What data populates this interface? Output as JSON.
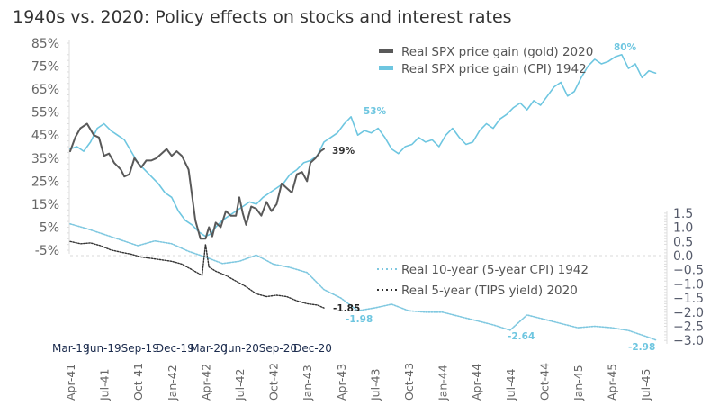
{
  "title": "1940s vs. 2020: Policy effects on stocks and interest rates",
  "colors": {
    "gold_2020": "#595959",
    "cpi_1942": "#6ec6e0",
    "tips_2020": "#333333",
    "real10_1942": "#7fc8e0",
    "axis_text": "#666666",
    "secondary_x_text": "#1b2b4d"
  },
  "chart_data": {
    "type": "line",
    "title": "1940s vs. 2020: Policy effects on stocks and interest rates",
    "x_primary_labels": [
      "Apr-41",
      "Jul-41",
      "Oct-41",
      "Jan-42",
      "Apr-42",
      "Jul-42",
      "Oct-42",
      "Jan-43",
      "Apr-43",
      "Jul-43",
      "Oct-43",
      "Jan-44",
      "Apr-44",
      "Jul-44",
      "Oct-44",
      "Jan-45",
      "Apr-45",
      "Jul-45"
    ],
    "x_secondary_labels": [
      "Mar-19",
      "Jun-19",
      "Sep-19",
      "Dec-19",
      "Mar-20",
      "Jun-20",
      "Sep-20",
      "Dec-20"
    ],
    "y_left": {
      "label": "",
      "ticks": [
        "85%",
        "75%",
        "65%",
        "55%",
        "45%",
        "35%",
        "25%",
        "15%",
        "5%",
        "-5%"
      ],
      "range": [
        -5,
        85
      ]
    },
    "y_right": {
      "label": "",
      "ticks": [
        "1.5",
        "1.0",
        "0.5",
        "0.0",
        "-0.5",
        "-1.0",
        "-1.5",
        "-2.0",
        "-2.5",
        "-3.0"
      ],
      "range": [
        -3.0,
        1.5
      ]
    },
    "legend": [
      {
        "name": "Real SPX price gain (gold) 2020",
        "style": "solid",
        "color": "#595959",
        "placement": "top-right"
      },
      {
        "name": "Real SPX price gain (CPI) 1942",
        "style": "solid",
        "color": "#6ec6e0",
        "placement": "top-right"
      },
      {
        "name": "Real 10-year (5-year CPI) 1942",
        "style": "dotted",
        "color": "#7fc8e0",
        "placement": "middle-right"
      },
      {
        "name": "Real 5-year (TIPS yield) 2020",
        "style": "dotted",
        "color": "#333333",
        "placement": "middle-right"
      }
    ],
    "series": [
      {
        "name": "Real SPX price gain (gold) 2020",
        "axis": "left",
        "x_quarters": [
          0,
          0.15,
          0.3,
          0.5,
          0.7,
          0.85,
          1.0,
          1.15,
          1.3,
          1.5,
          1.6,
          1.75,
          1.9,
          2.0,
          2.1,
          2.25,
          2.4,
          2.55,
          2.7,
          2.85,
          3.0,
          3.15,
          3.3,
          3.5,
          3.7,
          3.85,
          4.0,
          4.1,
          4.2,
          4.3,
          4.45,
          4.6,
          4.75,
          4.9,
          5.0,
          5.1,
          5.2,
          5.35,
          5.5,
          5.65,
          5.8,
          5.95,
          6.1,
          6.25,
          6.4,
          6.55,
          6.7,
          6.85,
          7.0,
          7.1,
          7.25,
          7.4,
          7.5
        ],
        "values": [
          38,
          44,
          48,
          50,
          45,
          44,
          36,
          37,
          33,
          30,
          27,
          28,
          35,
          33,
          31,
          34,
          34,
          35,
          37,
          39,
          36,
          38,
          36,
          30,
          8,
          0,
          0,
          5,
          1,
          7,
          5,
          12,
          10,
          10,
          18,
          11,
          6,
          14,
          13,
          10,
          16,
          12,
          15,
          24,
          22,
          20,
          28,
          29,
          25,
          33,
          35,
          38,
          39
        ]
      },
      {
        "name": "Real SPX price gain (CPI) 1942",
        "axis": "left",
        "x_quarters": [
          0,
          0.2,
          0.4,
          0.6,
          0.8,
          1.0,
          1.2,
          1.4,
          1.6,
          1.8,
          2.0,
          2.2,
          2.4,
          2.6,
          2.8,
          3.0,
          3.2,
          3.4,
          3.6,
          3.8,
          4.0,
          4.15,
          4.3,
          4.5,
          4.7,
          4.9,
          5.1,
          5.3,
          5.5,
          5.7,
          5.9,
          6.1,
          6.3,
          6.5,
          6.7,
          6.9,
          7.1,
          7.3,
          7.5,
          7.7,
          7.9,
          8.1,
          8.3,
          8.5,
          8.7,
          8.9,
          9.1,
          9.3,
          9.5,
          9.7,
          9.9,
          10.1,
          10.3,
          10.5,
          10.7,
          10.9,
          11.1,
          11.3,
          11.5,
          11.7,
          11.9,
          12.1,
          12.3,
          12.5,
          12.7,
          12.9,
          13.1,
          13.3,
          13.5,
          13.7,
          13.9,
          14.1,
          14.3,
          14.5,
          14.7,
          14.9,
          15.1,
          15.3,
          15.5,
          15.7,
          15.9,
          16.1,
          16.3,
          16.5,
          16.7,
          16.9,
          17.1,
          17.3
        ],
        "values": [
          39,
          40,
          38,
          42,
          48,
          50,
          47,
          45,
          43,
          38,
          33,
          30,
          27,
          24,
          20,
          18,
          12,
          8,
          6,
          3,
          1,
          2,
          5,
          8,
          10,
          12,
          14,
          16,
          15,
          18,
          20,
          22,
          24,
          28,
          30,
          33,
          34,
          36,
          42,
          44,
          46,
          50,
          53,
          45,
          47,
          46,
          48,
          44,
          39,
          37,
          40,
          41,
          44,
          42,
          43,
          40,
          45,
          48,
          44,
          41,
          42,
          47,
          50,
          48,
          52,
          54,
          57,
          59,
          56,
          60,
          58,
          62,
          66,
          68,
          62,
          64,
          70,
          75,
          78,
          76,
          77,
          79,
          80,
          74,
          76,
          70,
          73,
          72
        ]
      },
      {
        "name": "Real 10-year (5-year CPI) 1942",
        "axis": "right",
        "x_quarters": [
          0,
          0.5,
          1.0,
          1.5,
          2.0,
          2.5,
          3.0,
          3.5,
          4.0,
          4.5,
          5.0,
          5.5,
          6.0,
          6.5,
          7.0,
          7.5,
          8.0,
          8.5,
          9.0,
          9.5,
          10.0,
          10.5,
          11.0,
          11.5,
          12.0,
          12.5,
          13.0,
          13.5,
          14.0,
          14.5,
          15.0,
          15.5,
          16.0,
          16.5,
          17.0,
          17.3
        ],
        "values": [
          1.12,
          0.95,
          0.75,
          0.55,
          0.35,
          0.52,
          0.42,
          0.15,
          -0.05,
          -0.28,
          -0.2,
          0.02,
          -0.3,
          -0.42,
          -0.6,
          -1.2,
          -1.5,
          -1.95,
          -1.85,
          -1.72,
          -1.95,
          -2.0,
          -2.0,
          -2.15,
          -2.3,
          -2.45,
          -2.64,
          -2.1,
          -2.25,
          -2.4,
          -2.55,
          -2.5,
          -2.55,
          -2.65,
          -2.85,
          -2.98
        ]
      },
      {
        "name": "Real 5-year (TIPS yield) 2020",
        "axis": "right",
        "x_quarters": [
          0,
          0.3,
          0.6,
          0.9,
          1.2,
          1.5,
          1.8,
          2.1,
          2.4,
          2.7,
          3.0,
          3.3,
          3.6,
          3.9,
          4.0,
          4.1,
          4.3,
          4.6,
          4.9,
          5.2,
          5.5,
          5.8,
          6.1,
          6.4,
          6.7,
          7.0,
          7.3,
          7.5
        ],
        "values": [
          0.5,
          0.42,
          0.45,
          0.35,
          0.2,
          0.12,
          0.05,
          -0.05,
          -0.1,
          -0.15,
          -0.2,
          -0.3,
          -0.5,
          -0.7,
          0.4,
          -0.4,
          -0.55,
          -0.7,
          -0.9,
          -1.1,
          -1.35,
          -1.45,
          -1.4,
          -1.45,
          -1.6,
          -1.7,
          -1.75,
          -1.85
        ]
      }
    ],
    "annotations": [
      {
        "text": "80%",
        "series": "Real SPX price gain (CPI) 1942"
      },
      {
        "text": "53%",
        "series": "Real SPX price gain (CPI) 1942"
      },
      {
        "text": "39%",
        "series": "Real SPX price gain (gold) 2020"
      },
      {
        "text": "-1.85",
        "series": "Real 5-year (TIPS yield) 2020"
      },
      {
        "text": "-1.98",
        "series": "Real 10-year (5-year CPI) 1942"
      },
      {
        "text": "-2.64",
        "series": "Real 10-year (5-year CPI) 1942"
      },
      {
        "text": "-2.98",
        "series": "Real 10-year (5-year CPI) 1942"
      }
    ]
  }
}
